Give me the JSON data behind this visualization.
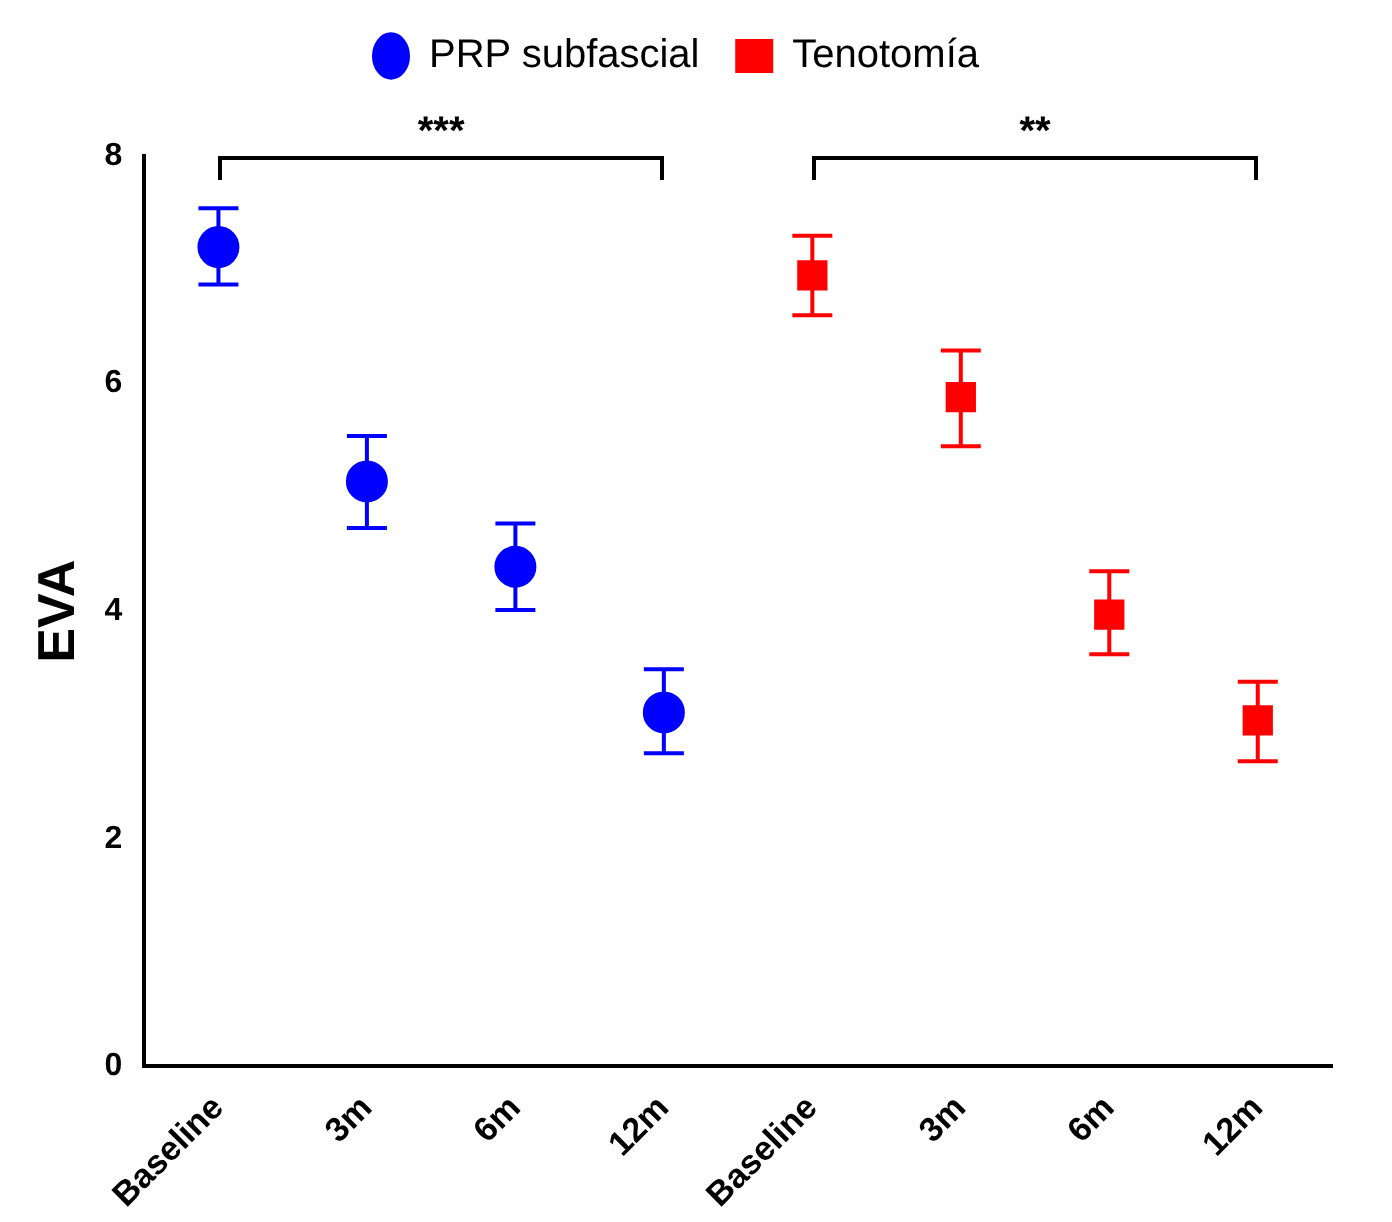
{
  "chart_data": {
    "type": "scatter",
    "ylabel": "EVA",
    "categories": [
      "Baseline",
      "3m",
      "6m",
      "12m",
      "Baseline",
      "3m",
      "6m",
      "12m"
    ],
    "series": [
      {
        "name": "PRP subfascial",
        "color": "#0000ff",
        "marker": "circle",
        "values": [
          7.2,
          5.14,
          4.39,
          3.11,
          null,
          null,
          null,
          null
        ],
        "errors": [
          [
            6.87,
            7.54
          ],
          [
            4.73,
            5.54
          ],
          [
            4.01,
            4.77
          ],
          [
            2.75,
            3.49
          ],
          null,
          null,
          null,
          null
        ]
      },
      {
        "name": "Tenotomía",
        "color": "#ff0000",
        "marker": "square",
        "values": [
          null,
          null,
          null,
          null,
          6.95,
          5.88,
          3.97,
          3.04
        ],
        "errors": [
          null,
          null,
          null,
          null,
          [
            6.6,
            7.3
          ],
          [
            5.45,
            6.29
          ],
          [
            3.62,
            4.35
          ],
          [
            2.68,
            3.38
          ]
        ]
      }
    ],
    "annotations": [
      "***",
      "**"
    ],
    "ylim": [
      0,
      8
    ],
    "yticks": [
      0,
      2,
      4,
      6,
      8
    ],
    "grid": false,
    "legend": "top"
  }
}
